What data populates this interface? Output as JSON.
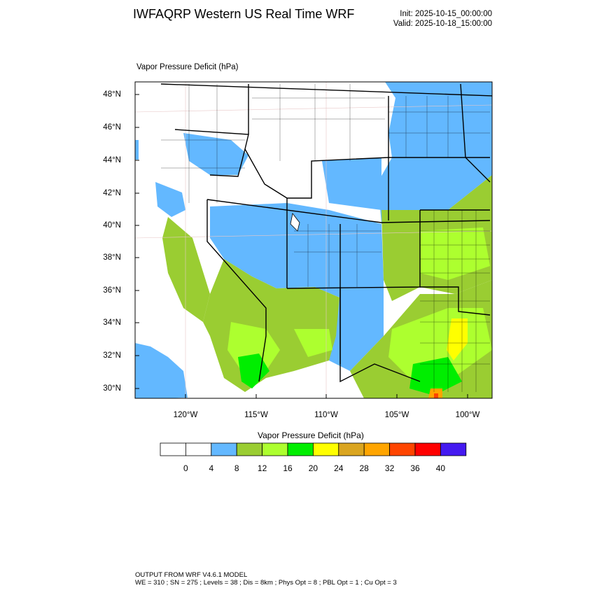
{
  "header": {
    "title": "IWFAQRP Western US Real Time WRF",
    "init": "Init: 2025-10-15_00:00:00",
    "valid": "Valid: 2025-10-18_15:00:00"
  },
  "map": {
    "field_label": "Vapor Pressure Deficit   (hPa)",
    "lat_labels": [
      "48°N",
      "46°N",
      "44°N",
      "42°N",
      "40°N",
      "38°N",
      "36°N",
      "34°N",
      "32°N",
      "30°N"
    ],
    "lon_labels": [
      "120°W",
      "115°W",
      "110°W",
      "105°W",
      "100°W"
    ]
  },
  "colorbar": {
    "title": "Vapor Pressure Deficit  (hPa)",
    "labels": [
      "0",
      "4",
      "8",
      "12",
      "16",
      "20",
      "24",
      "28",
      "32",
      "36",
      "40"
    ],
    "colors": [
      "#ffffff",
      "#ffffff",
      "#63b8ff",
      "#9acd32",
      "#adff2f",
      "#00ee00",
      "#ffff00",
      "#daa520",
      "#ffa500",
      "#ff4500",
      "#ff0000",
      "#4419f0"
    ]
  },
  "footer": {
    "line1": "OUTPUT FROM WRF V4.6.1 MODEL",
    "line2": "WE = 310 ; SN = 275 ; Levels = 38 ; Dis = 8km ; Phys Opt = 8 ; PBL Opt = 1 ; Cu Opt = 3"
  }
}
